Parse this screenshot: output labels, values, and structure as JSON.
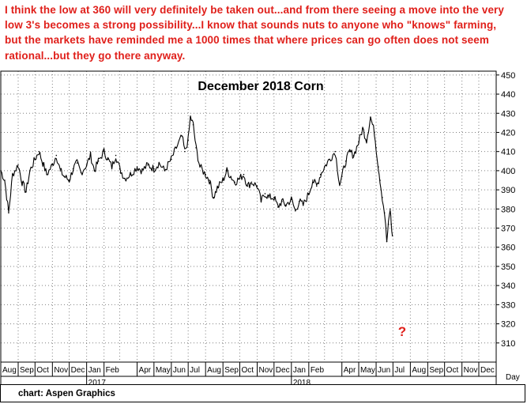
{
  "annotation": {
    "text": "I think the low at 360 will very definitely be taken out...and from there seeing a move into the very low 3's  becomes a strong possibility...I know that sounds nuts to anyone who \"knows\" farming, but the markets have reminded me a 1000 times that where prices can go often does not seem rational...but they go there anyway."
  },
  "footer": {
    "credit": "chart: Aspen Graphics"
  },
  "colors": {
    "annotation": "#e0201b",
    "price": "#000000",
    "grid": "#808080",
    "question": "#e0201b"
  },
  "chart_data": {
    "type": "line",
    "title": "December 2018 Corn",
    "y_axis_side": "right",
    "ylim": [
      300,
      452
    ],
    "yticks": [
      310,
      320,
      330,
      340,
      350,
      360,
      370,
      380,
      390,
      400,
      410,
      420,
      430,
      440,
      450
    ],
    "x_unit_label": "Day",
    "grid": true,
    "month_labels": [
      "Aug",
      "Sep",
      "Oct",
      "Nov",
      "Dec",
      "Jan",
      "Feb",
      "Apr",
      "Jun",
      "Jul",
      "Aug",
      "Sep",
      "Oct",
      "Nov",
      "Dec",
      "Jan",
      "Feb",
      "Apr",
      "May",
      "Jun",
      "Jul",
      "Aug",
      "Oct",
      "Nov",
      "Dec"
    ],
    "year_labels": [
      "2017",
      "2018"
    ],
    "question_mark": "?",
    "series": [
      {
        "values": [
          {
            "x": "2016-08-01",
            "y": 400
          },
          {
            "x": "2016-08-08",
            "y": 395
          },
          {
            "x": "2016-08-15",
            "y": 378
          },
          {
            "x": "2016-08-22",
            "y": 398
          },
          {
            "x": "2016-09-01",
            "y": 403
          },
          {
            "x": "2016-09-08",
            "y": 394
          },
          {
            "x": "2016-09-15",
            "y": 389
          },
          {
            "x": "2016-09-22",
            "y": 400
          },
          {
            "x": "2016-10-01",
            "y": 406
          },
          {
            "x": "2016-10-08",
            "y": 410
          },
          {
            "x": "2016-10-15",
            "y": 404
          },
          {
            "x": "2016-10-22",
            "y": 398
          },
          {
            "x": "2016-11-01",
            "y": 403
          },
          {
            "x": "2016-11-08",
            "y": 408
          },
          {
            "x": "2016-11-15",
            "y": 400
          },
          {
            "x": "2016-11-22",
            "y": 397
          },
          {
            "x": "2016-12-01",
            "y": 395
          },
          {
            "x": "2016-12-08",
            "y": 401
          },
          {
            "x": "2016-12-15",
            "y": 404
          },
          {
            "x": "2016-12-22",
            "y": 399
          },
          {
            "x": "2017-01-01",
            "y": 403
          },
          {
            "x": "2017-01-08",
            "y": 408
          },
          {
            "x": "2017-01-15",
            "y": 400
          },
          {
            "x": "2017-01-22",
            "y": 405
          },
          {
            "x": "2017-02-01",
            "y": 410
          },
          {
            "x": "2017-02-08",
            "y": 406
          },
          {
            "x": "2017-02-15",
            "y": 402
          },
          {
            "x": "2017-02-22",
            "y": 408
          },
          {
            "x": "2017-03-01",
            "y": 401
          },
          {
            "x": "2017-03-10",
            "y": 396
          },
          {
            "x": "2017-03-20",
            "y": 398
          },
          {
            "x": "2017-04-01",
            "y": 402
          },
          {
            "x": "2017-04-10",
            "y": 400
          },
          {
            "x": "2017-04-20",
            "y": 403
          },
          {
            "x": "2017-05-01",
            "y": 401
          },
          {
            "x": "2017-05-10",
            "y": 404
          },
          {
            "x": "2017-05-20",
            "y": 400
          },
          {
            "x": "2017-06-01",
            "y": 406
          },
          {
            "x": "2017-06-10",
            "y": 412
          },
          {
            "x": "2017-06-20",
            "y": 418
          },
          {
            "x": "2017-06-25",
            "y": 410
          },
          {
            "x": "2017-07-01",
            "y": 416
          },
          {
            "x": "2017-07-05",
            "y": 428
          },
          {
            "x": "2017-07-10",
            "y": 424
          },
          {
            "x": "2017-07-15",
            "y": 412
          },
          {
            "x": "2017-07-22",
            "y": 402
          },
          {
            "x": "2017-08-01",
            "y": 398
          },
          {
            "x": "2017-08-08",
            "y": 395
          },
          {
            "x": "2017-08-15",
            "y": 386
          },
          {
            "x": "2017-08-22",
            "y": 391
          },
          {
            "x": "2017-09-01",
            "y": 395
          },
          {
            "x": "2017-09-08",
            "y": 400
          },
          {
            "x": "2017-09-15",
            "y": 397
          },
          {
            "x": "2017-09-22",
            "y": 394
          },
          {
            "x": "2017-10-01",
            "y": 396
          },
          {
            "x": "2017-10-08",
            "y": 398
          },
          {
            "x": "2017-10-15",
            "y": 392
          },
          {
            "x": "2017-10-22",
            "y": 394
          },
          {
            "x": "2017-11-01",
            "y": 392
          },
          {
            "x": "2017-11-08",
            "y": 384
          },
          {
            "x": "2017-11-15",
            "y": 388
          },
          {
            "x": "2017-11-22",
            "y": 386
          },
          {
            "x": "2017-12-01",
            "y": 386
          },
          {
            "x": "2017-12-08",
            "y": 381
          },
          {
            "x": "2017-12-15",
            "y": 384
          },
          {
            "x": "2017-12-22",
            "y": 382
          },
          {
            "x": "2018-01-01",
            "y": 385
          },
          {
            "x": "2018-01-08",
            "y": 379
          },
          {
            "x": "2018-01-15",
            "y": 384
          },
          {
            "x": "2018-01-22",
            "y": 382
          },
          {
            "x": "2018-02-01",
            "y": 388
          },
          {
            "x": "2018-02-08",
            "y": 395
          },
          {
            "x": "2018-02-15",
            "y": 392
          },
          {
            "x": "2018-02-22",
            "y": 398
          },
          {
            "x": "2018-03-01",
            "y": 402
          },
          {
            "x": "2018-03-10",
            "y": 406
          },
          {
            "x": "2018-03-20",
            "y": 410
          },
          {
            "x": "2018-03-28",
            "y": 393
          },
          {
            "x": "2018-04-01",
            "y": 397
          },
          {
            "x": "2018-04-08",
            "y": 405
          },
          {
            "x": "2018-04-15",
            "y": 410
          },
          {
            "x": "2018-04-22",
            "y": 408
          },
          {
            "x": "2018-05-01",
            "y": 415
          },
          {
            "x": "2018-05-08",
            "y": 422
          },
          {
            "x": "2018-05-15",
            "y": 416
          },
          {
            "x": "2018-05-22",
            "y": 428
          },
          {
            "x": "2018-05-29",
            "y": 420
          },
          {
            "x": "2018-06-01",
            "y": 412
          },
          {
            "x": "2018-06-05",
            "y": 402
          },
          {
            "x": "2018-06-08",
            "y": 395
          },
          {
            "x": "2018-06-12",
            "y": 386
          },
          {
            "x": "2018-06-16",
            "y": 378
          },
          {
            "x": "2018-06-20",
            "y": 363
          },
          {
            "x": "2018-06-23",
            "y": 372
          },
          {
            "x": "2018-06-26",
            "y": 380
          },
          {
            "x": "2018-06-28",
            "y": 372
          },
          {
            "x": "2018-06-30",
            "y": 366
          }
        ]
      }
    ]
  }
}
